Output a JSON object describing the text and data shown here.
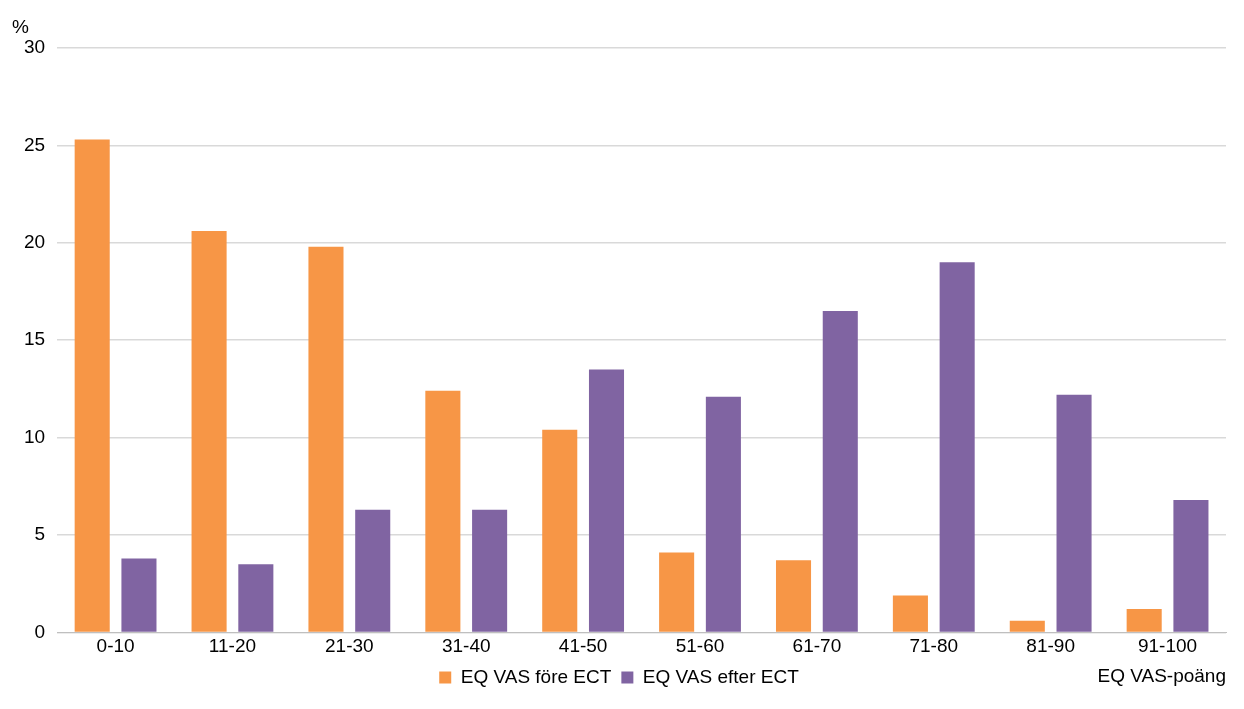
{
  "chart_data": {
    "type": "bar",
    "xlabel": "EQ VAS-poäng",
    "ylabel": "%",
    "categories": [
      "0-10",
      "11-20",
      "21-30",
      "31-40",
      "41-50",
      "51-60",
      "61-70",
      "71-80",
      "81-90",
      "91-100"
    ],
    "series": [
      {
        "name": "EQ VAS före ECT",
        "color": "#f79646",
        "values": [
          25.3,
          20.6,
          19.8,
          12.4,
          10.4,
          4.1,
          3.7,
          1.9,
          0.6,
          1.2
        ]
      },
      {
        "name": "EQ VAS efter ECT",
        "color": "#8064a2",
        "values": [
          3.8,
          3.5,
          6.3,
          6.3,
          13.5,
          12.1,
          16.5,
          19.0,
          12.2,
          6.8
        ]
      }
    ],
    "ylim": [
      0,
      30
    ],
    "yticks": [
      0,
      5,
      10,
      15,
      20,
      25,
      30
    ],
    "grid": "y",
    "legend": "bottom"
  }
}
